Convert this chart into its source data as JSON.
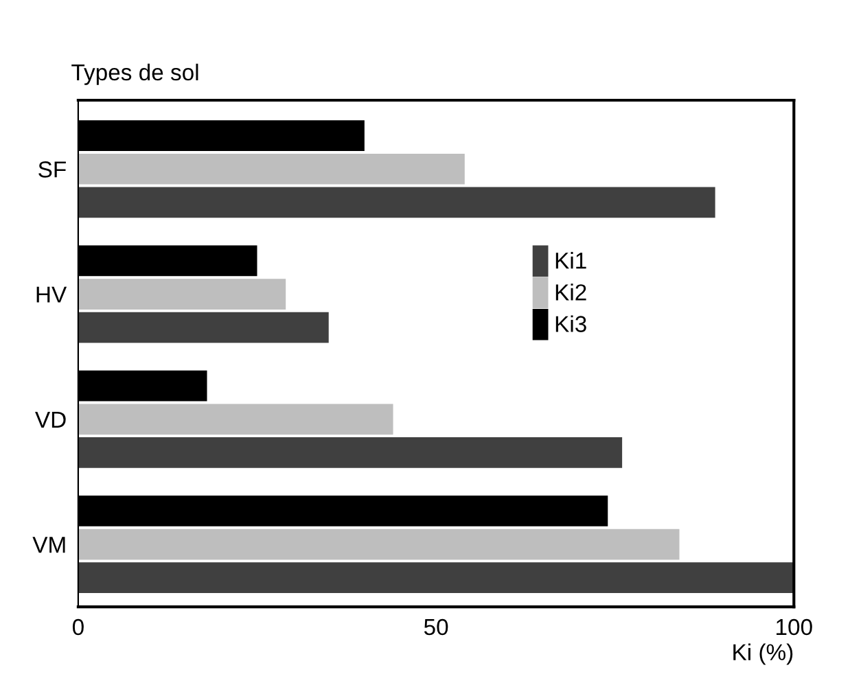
{
  "chart_data": {
    "type": "bar",
    "orientation": "horizontal",
    "ylabel": "Types de sol",
    "xlabel": "Ki (%)",
    "categories": [
      "SF",
      "HV",
      "VD",
      "VM"
    ],
    "series": [
      {
        "name": "Ki1",
        "color": "#404040",
        "values": [
          89,
          35,
          76,
          100
        ]
      },
      {
        "name": "Ki2",
        "color": "#bebebe",
        "values": [
          54,
          29,
          44,
          84
        ]
      },
      {
        "name": "Ki3",
        "color": "#000000",
        "values": [
          40,
          25,
          18,
          74
        ]
      }
    ],
    "xlim": [
      0,
      100
    ],
    "xticks": [
      0,
      50,
      100
    ],
    "grid": false,
    "legend": "right"
  }
}
